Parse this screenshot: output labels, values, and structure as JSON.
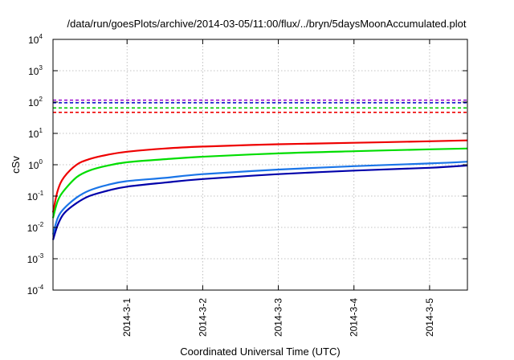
{
  "chart_data": {
    "type": "line",
    "title": "/data/run/goesPlots/archive/2014-03-05/11:00/flux/../bryn/5daysMoonAccumulated.plot",
    "xlabel": "Coordinated Universal Time (UTC)",
    "ylabel": "cSv",
    "yscale": "log",
    "ylim": [
      0.0001,
      10000
    ],
    "xlim": [
      "2014-02-28 00:30",
      "2014-03-05 12:00"
    ],
    "grid": true,
    "y_ticks": [
      {
        "base": "10",
        "exp": "-4"
      },
      {
        "base": "10",
        "exp": "-3"
      },
      {
        "base": "10",
        "exp": "-2"
      },
      {
        "base": "10",
        "exp": "-1"
      },
      {
        "base": "10",
        "exp": "0"
      },
      {
        "base": "10",
        "exp": "1"
      },
      {
        "base": "10",
        "exp": "2"
      },
      {
        "base": "10",
        "exp": "3"
      },
      {
        "base": "10",
        "exp": "4"
      }
    ],
    "x_ticks": [
      "2014-3-1",
      "2014-3-2",
      "2014-3-3",
      "2014-3-4",
      "2014-3-5"
    ],
    "thresholds": [
      {
        "color": "#9900cc",
        "value": 115
      },
      {
        "color": "#0000cc",
        "value": 95
      },
      {
        "color": "#00cc00",
        "value": 65
      },
      {
        "color": "#ee0000",
        "value": 47
      }
    ],
    "series": [
      {
        "color": "#ee0000",
        "x": [
          "2014-02-28 00:30",
          "2014-02-28 02:00",
          "2014-02-28 04:00",
          "2014-02-28 08:00",
          "2014-02-28 12:00",
          "2014-02-28 18:00",
          "2014-03-01 00:00",
          "2014-03-01 12:00",
          "2014-03-02 00:00",
          "2014-03-03 00:00",
          "2014-03-04 00:00",
          "2014-03-05 00:00",
          "2014-03-05 12:00"
        ],
        "y": [
          0.03,
          0.15,
          0.4,
          1.0,
          1.5,
          2.1,
          2.6,
          3.3,
          3.8,
          4.5,
          5.0,
          5.6,
          6.0
        ]
      },
      {
        "color": "#00dd00",
        "x": [
          "2014-02-28 00:30",
          "2014-02-28 02:00",
          "2014-02-28 04:00",
          "2014-02-28 08:00",
          "2014-02-28 12:00",
          "2014-02-28 18:00",
          "2014-03-01 00:00",
          "2014-03-01 12:00",
          "2014-03-02 00:00",
          "2014-03-03 00:00",
          "2014-03-04 00:00",
          "2014-03-05 00:00",
          "2014-03-05 12:00"
        ],
        "y": [
          0.02,
          0.07,
          0.15,
          0.4,
          0.65,
          0.95,
          1.2,
          1.5,
          1.8,
          2.3,
          2.7,
          3.1,
          3.3
        ]
      },
      {
        "color": "#1a75e8",
        "x": [
          "2014-02-28 00:30",
          "2014-02-28 02:00",
          "2014-02-28 04:00",
          "2014-02-28 08:00",
          "2014-02-28 12:00",
          "2014-02-28 18:00",
          "2014-03-01 00:00",
          "2014-03-01 12:00",
          "2014-03-02 00:00",
          "2014-03-03 00:00",
          "2014-03-04 00:00",
          "2014-03-05 00:00",
          "2014-03-05 12:00"
        ],
        "y": [
          0.006,
          0.02,
          0.04,
          0.09,
          0.15,
          0.23,
          0.3,
          0.38,
          0.5,
          0.7,
          0.9,
          1.1,
          1.25
        ]
      },
      {
        "color": "#0000aa",
        "x": [
          "2014-02-28 00:30",
          "2014-02-28 02:00",
          "2014-02-28 04:00",
          "2014-02-28 08:00",
          "2014-02-28 12:00",
          "2014-02-28 18:00",
          "2014-03-01 00:00",
          "2014-03-01 12:00",
          "2014-03-02 00:00",
          "2014-03-03 00:00",
          "2014-03-04 00:00",
          "2014-03-05 00:00",
          "2014-03-05 12:00"
        ],
        "y": [
          0.004,
          0.012,
          0.028,
          0.06,
          0.1,
          0.15,
          0.2,
          0.27,
          0.35,
          0.5,
          0.65,
          0.8,
          0.95
        ]
      }
    ]
  }
}
